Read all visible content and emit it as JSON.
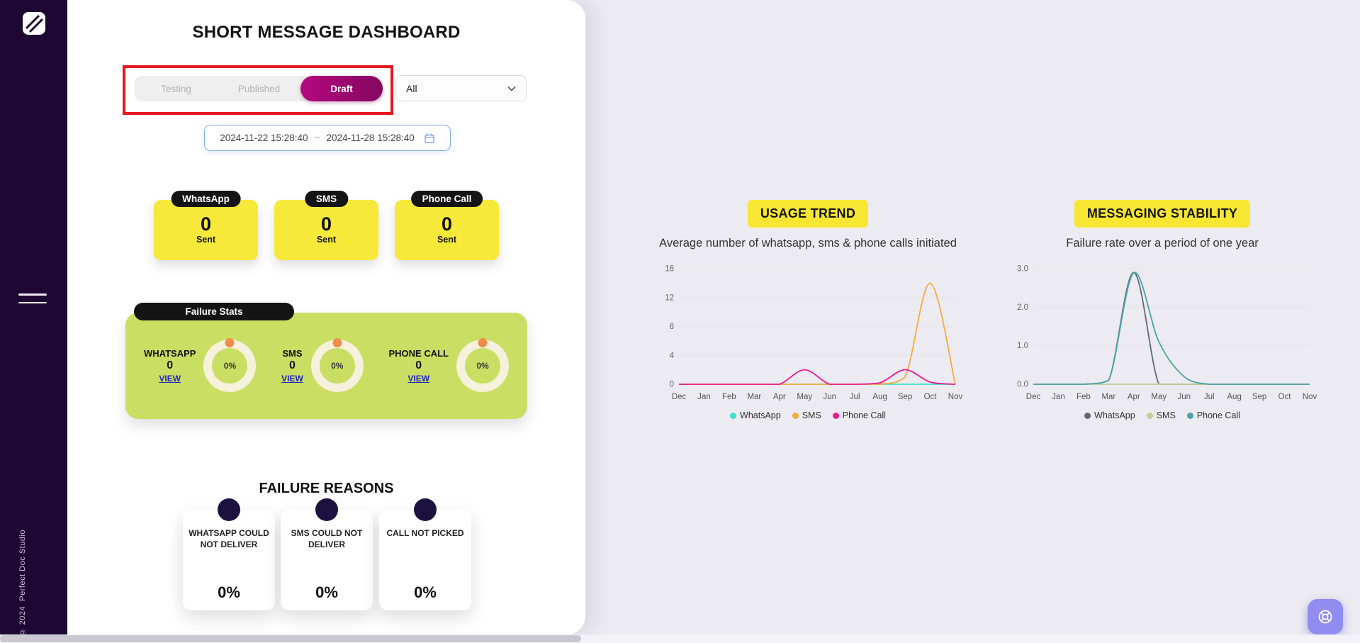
{
  "sidebar": {
    "copyright_line1": "© 2024",
    "copyright_line2": "Perfect Doc Studio",
    "icons": {
      "logo": "stacked-pages-logo",
      "menu": "hamburger-menu"
    }
  },
  "header": {
    "title": "SHORT MESSAGE DASHBOARD"
  },
  "tabs": [
    {
      "label": "Testing",
      "active": false
    },
    {
      "label": "Published",
      "active": false
    },
    {
      "label": "Draft",
      "active": true
    }
  ],
  "filters": {
    "status_dropdown": {
      "value": "All",
      "icon": "chevron-down"
    },
    "date_range": {
      "start": "2024-11-22 15:28:40",
      "separator": "~",
      "end": "2024-11-28 15:28:40",
      "icon": "calendar"
    }
  },
  "stat_cards": [
    {
      "label": "WhatsApp",
      "value": "0",
      "unit": "Sent"
    },
    {
      "label": "SMS",
      "value": "0",
      "unit": "Sent"
    },
    {
      "label": "Phone Call",
      "value": "0",
      "unit": "Sent"
    }
  ],
  "failure_stats": {
    "title": "Failure Stats",
    "items": [
      {
        "label": "WHATSAPP",
        "value": "0",
        "link": "VIEW",
        "percent": "0%"
      },
      {
        "label": "SMS",
        "value": "0",
        "link": "VIEW",
        "percent": "0%"
      },
      {
        "label": "PHONE CALL",
        "value": "0",
        "link": "VIEW",
        "percent": "0%"
      }
    ],
    "colors": {
      "panel": "#c9de62",
      "ring": "#f6f1dc",
      "marker": "#ee8d4b"
    }
  },
  "failure_reasons": {
    "title": "FAILURE REASONS",
    "cards": [
      {
        "label": "WHATSAPP COULD NOT DELIVER",
        "value": "0%"
      },
      {
        "label": "SMS COULD NOT DELIVER",
        "value": "0%"
      },
      {
        "label": "CALL NOT PICKED",
        "value": "0%"
      }
    ]
  },
  "fab": {
    "icon": "lifebuoy",
    "color": "#918cf0"
  },
  "theme": {
    "sidebar_bg": "#1e0733",
    "accent_yellow": "#f6e93a",
    "active_tab": "#a3087a",
    "annotation_red": "#e5191e",
    "right_bg": "#ecebf1",
    "view_link": "#2026c5"
  },
  "chart_data": [
    {
      "type": "line",
      "title": "USAGE TREND",
      "subtitle": "Average number of whatsapp, sms & phone calls initiated",
      "x": [
        "Dec",
        "Jan",
        "Feb",
        "Mar",
        "Apr",
        "May",
        "Jun",
        "Jul",
        "Aug",
        "Sep",
        "Oct",
        "Nov"
      ],
      "ylim": [
        0,
        16
      ],
      "y_ticks": [
        0,
        4,
        8,
        12,
        16
      ],
      "y_tick_labels": [
        "0",
        "4",
        "8",
        "12",
        "16"
      ],
      "grid": true,
      "legend_position": "bottom",
      "series": [
        {
          "name": "WhatsApp",
          "color": "#3fe0c8",
          "values": [
            0,
            0,
            0,
            0,
            0,
            0,
            0,
            0,
            0,
            0,
            0,
            0
          ]
        },
        {
          "name": "SMS",
          "color": "#f2ac3c",
          "values": [
            0,
            0,
            0,
            0,
            0,
            0,
            0,
            0,
            0,
            1,
            14,
            0
          ]
        },
        {
          "name": "Phone Call",
          "color": "#e9188f",
          "values": [
            0,
            0,
            0,
            0,
            0,
            2,
            0,
            0,
            0.2,
            2,
            0.3,
            0
          ]
        }
      ]
    },
    {
      "type": "line",
      "title": "MESSAGING STABILITY",
      "subtitle": "Failure rate over a period of one year",
      "x": [
        "Dec",
        "Jan",
        "Feb",
        "Mar",
        "Apr",
        "May",
        "Jun",
        "Jul",
        "Aug",
        "Sep",
        "Oct",
        "Nov"
      ],
      "ylim": [
        0,
        3
      ],
      "y_ticks": [
        0,
        1,
        2,
        3
      ],
      "y_tick_labels": [
        "0.0",
        "1.0",
        "2.0",
        "3.0"
      ],
      "grid": true,
      "legend_position": "bottom",
      "series": [
        {
          "name": "WhatsApp",
          "color": "#5b6979",
          "values": [
            0,
            0,
            0,
            0.1,
            2.9,
            0,
            0,
            0,
            0,
            0,
            0,
            0
          ]
        },
        {
          "name": "SMS",
          "color": "#bdd095",
          "values": [
            0,
            0,
            0,
            0,
            0,
            0,
            0,
            0,
            0,
            0,
            0,
            0
          ]
        },
        {
          "name": "Phone Call",
          "color": "#49a4a4",
          "values": [
            0,
            0,
            0,
            0.1,
            2.9,
            1.1,
            0.2,
            0,
            0,
            0,
            0,
            0
          ]
        }
      ]
    }
  ]
}
